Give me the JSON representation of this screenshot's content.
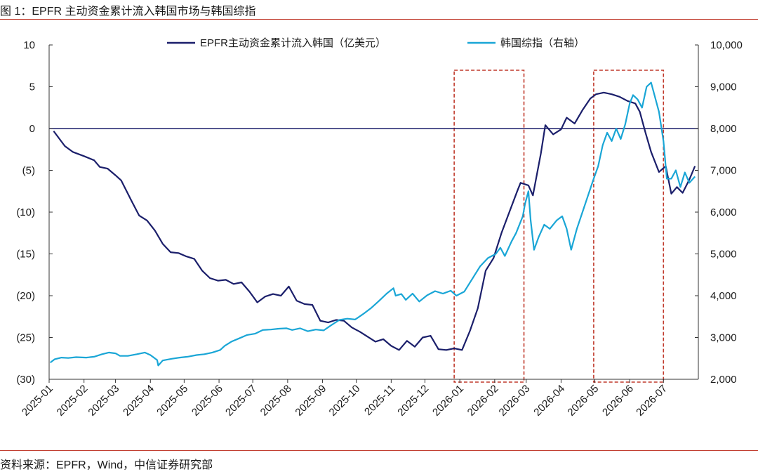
{
  "figure": {
    "title": "图 1：EPFR 主动资金累计流入韩国市场与韩国综指",
    "source": "资料来源：EPFR，Wind，中信证券研究部"
  },
  "colors": {
    "navy": "#1b1f6b",
    "cyan": "#1aa6d6",
    "highlight": "#c0392b",
    "rule": "#c0392b"
  },
  "chart_data": {
    "type": "line",
    "x_ticks": [
      "2025-01",
      "2025-02",
      "2025-03",
      "2025-04",
      "2025-05",
      "2025-06",
      "2025-07",
      "2025-08",
      "2025-09",
      "2025-10",
      "2025-11",
      "2025-12",
      "2026-01",
      "2026-02",
      "2026-03",
      "2026-04",
      "2026-05",
      "2026-06",
      "2026-07"
    ],
    "y_left": {
      "min": -30,
      "max": 10,
      "ticks": [
        "10",
        "5",
        "0",
        "(5)",
        "(10)",
        "(15)",
        "(20)",
        "(25)",
        "(30)"
      ]
    },
    "y_right": {
      "min": 2000,
      "max": 10000,
      "ticks": [
        "10,000",
        "9,000",
        "8,000",
        "7,000",
        "6,000",
        "5,000",
        "4,000",
        "3,000",
        "2,000"
      ]
    },
    "legend_position": "top",
    "highlight_ranges": [
      {
        "start": "2025-12-27",
        "end": "2026-02-27"
      },
      {
        "start": "2026-04-30",
        "end": "2026-07-01"
      }
    ],
    "series": [
      {
        "name": "EPFR主动资金累计流入韩国（亿美元）",
        "axis": "left",
        "points": [
          [
            "2025-01-05",
            -0.3
          ],
          [
            "2025-01-15",
            -2.1
          ],
          [
            "2025-01-22",
            -2.8
          ],
          [
            "2025-02-01",
            -3.3
          ],
          [
            "2025-02-10",
            -3.8
          ],
          [
            "2025-02-15",
            -4.6
          ],
          [
            "2025-02-22",
            -4.8
          ],
          [
            "2025-03-01",
            -5.6
          ],
          [
            "2025-03-06",
            -6.2
          ],
          [
            "2025-03-15",
            -8.6
          ],
          [
            "2025-03-22",
            -10.4
          ],
          [
            "2025-03-29",
            -11.0
          ],
          [
            "2025-04-05",
            -12.2
          ],
          [
            "2025-04-12",
            -13.8
          ],
          [
            "2025-04-19",
            -14.8
          ],
          [
            "2025-04-26",
            -14.9
          ],
          [
            "2025-05-03",
            -15.3
          ],
          [
            "2025-05-10",
            -15.6
          ],
          [
            "2025-05-17",
            -17.0
          ],
          [
            "2025-05-24",
            -17.9
          ],
          [
            "2025-05-31",
            -18.2
          ],
          [
            "2025-06-07",
            -18.1
          ],
          [
            "2025-06-14",
            -18.6
          ],
          [
            "2025-06-21",
            -18.4
          ],
          [
            "2025-06-28",
            -19.5
          ],
          [
            "2025-07-05",
            -20.8
          ],
          [
            "2025-07-12",
            -20.1
          ],
          [
            "2025-07-19",
            -19.8
          ],
          [
            "2025-07-26",
            -20.0
          ],
          [
            "2025-08-02",
            -18.9
          ],
          [
            "2025-08-09",
            -20.6
          ],
          [
            "2025-08-16",
            -21.0
          ],
          [
            "2025-08-23",
            -21.1
          ],
          [
            "2025-08-30",
            -23.0
          ],
          [
            "2025-09-06",
            -23.2
          ],
          [
            "2025-09-13",
            -22.9
          ],
          [
            "2025-09-20",
            -23.0
          ],
          [
            "2025-09-27",
            -23.8
          ],
          [
            "2025-10-04",
            -24.3
          ],
          [
            "2025-10-11",
            -24.9
          ],
          [
            "2025-10-18",
            -25.5
          ],
          [
            "2025-10-25",
            -25.2
          ],
          [
            "2025-11-01",
            -26.0
          ],
          [
            "2025-11-08",
            -26.5
          ],
          [
            "2025-11-15",
            -25.4
          ],
          [
            "2025-11-22",
            -26.1
          ],
          [
            "2025-11-29",
            -25.0
          ],
          [
            "2025-12-06",
            -24.8
          ],
          [
            "2025-12-13",
            -26.4
          ],
          [
            "2025-12-20",
            -26.5
          ],
          [
            "2025-12-27",
            -26.3
          ],
          [
            "2026-01-03",
            -26.5
          ],
          [
            "2026-01-10",
            -24.2
          ],
          [
            "2026-01-17",
            -21.5
          ],
          [
            "2026-01-24",
            -17.0
          ],
          [
            "2026-01-31",
            -15.5
          ],
          [
            "2026-02-07",
            -12.5
          ],
          [
            "2026-02-14",
            -10.0
          ],
          [
            "2026-02-21",
            -7.5
          ],
          [
            "2026-02-24",
            -6.5
          ],
          [
            "2026-03-03",
            -6.8
          ],
          [
            "2026-03-07",
            -8.0
          ],
          [
            "2026-03-14",
            -3.0
          ],
          [
            "2026-03-18",
            0.4
          ],
          [
            "2026-03-25",
            -0.7
          ],
          [
            "2026-04-01",
            -0.1
          ],
          [
            "2026-04-06",
            1.3
          ],
          [
            "2026-04-13",
            0.6
          ],
          [
            "2026-04-20",
            2.2
          ],
          [
            "2026-04-27",
            3.6
          ],
          [
            "2026-05-02",
            4.1
          ],
          [
            "2026-05-09",
            4.3
          ],
          [
            "2026-05-16",
            4.1
          ],
          [
            "2026-05-23",
            3.8
          ],
          [
            "2026-05-30",
            3.3
          ],
          [
            "2026-06-06",
            3.0
          ],
          [
            "2026-06-10",
            2.0
          ],
          [
            "2026-06-15",
            -0.5
          ],
          [
            "2026-06-20",
            -2.8
          ],
          [
            "2026-06-27",
            -5.2
          ],
          [
            "2026-07-03",
            -4.5
          ],
          [
            "2026-07-08",
            -7.8
          ],
          [
            "2026-07-13",
            -7.0
          ],
          [
            "2026-07-18",
            -7.7
          ],
          [
            "2026-07-24",
            -6.1
          ],
          [
            "2026-07-29",
            -4.5
          ]
        ]
      },
      {
        "name": "韩国综指（右轴）",
        "axis": "right",
        "points": [
          [
            "2025-01-02",
            2400
          ],
          [
            "2025-01-06",
            2480
          ],
          [
            "2025-01-12",
            2520
          ],
          [
            "2025-01-18",
            2510
          ],
          [
            "2025-01-25",
            2530
          ],
          [
            "2025-02-03",
            2520
          ],
          [
            "2025-02-10",
            2540
          ],
          [
            "2025-02-17",
            2600
          ],
          [
            "2025-02-23",
            2640
          ],
          [
            "2025-03-01",
            2620
          ],
          [
            "2025-03-05",
            2560
          ],
          [
            "2025-03-12",
            2560
          ],
          [
            "2025-03-20",
            2600
          ],
          [
            "2025-03-27",
            2640
          ],
          [
            "2025-04-01",
            2580
          ],
          [
            "2025-04-07",
            2460
          ],
          [
            "2025-04-08",
            2330
          ],
          [
            "2025-04-12",
            2450
          ],
          [
            "2025-04-20",
            2490
          ],
          [
            "2025-04-27",
            2520
          ],
          [
            "2025-05-04",
            2540
          ],
          [
            "2025-05-12",
            2580
          ],
          [
            "2025-05-19",
            2600
          ],
          [
            "2025-05-26",
            2640
          ],
          [
            "2025-06-02",
            2700
          ],
          [
            "2025-06-06",
            2800
          ],
          [
            "2025-06-12",
            2900
          ],
          [
            "2025-06-19",
            2980
          ],
          [
            "2025-06-26",
            3060
          ],
          [
            "2025-07-03",
            3090
          ],
          [
            "2025-07-10",
            3180
          ],
          [
            "2025-07-17",
            3190
          ],
          [
            "2025-07-24",
            3210
          ],
          [
            "2025-07-31",
            3220
          ],
          [
            "2025-08-05",
            3180
          ],
          [
            "2025-08-12",
            3220
          ],
          [
            "2025-08-19",
            3150
          ],
          [
            "2025-08-26",
            3190
          ],
          [
            "2025-09-02",
            3170
          ],
          [
            "2025-09-09",
            3300
          ],
          [
            "2025-09-16",
            3420
          ],
          [
            "2025-09-23",
            3450
          ],
          [
            "2025-09-30",
            3430
          ],
          [
            "2025-10-07",
            3560
          ],
          [
            "2025-10-14",
            3700
          ],
          [
            "2025-10-21",
            3870
          ],
          [
            "2025-10-28",
            4050
          ],
          [
            "2025-11-03",
            4180
          ],
          [
            "2025-11-05",
            4000
          ],
          [
            "2025-11-10",
            4040
          ],
          [
            "2025-11-14",
            3900
          ],
          [
            "2025-11-20",
            4050
          ],
          [
            "2025-11-26",
            3860
          ],
          [
            "2025-12-03",
            4010
          ],
          [
            "2025-12-10",
            4110
          ],
          [
            "2025-12-17",
            4050
          ],
          [
            "2025-12-24",
            4120
          ],
          [
            "2025-12-29",
            4000
          ],
          [
            "2026-01-05",
            4100
          ],
          [
            "2026-01-12",
            4400
          ],
          [
            "2026-01-19",
            4700
          ],
          [
            "2026-01-26",
            4900
          ],
          [
            "2026-02-02",
            5000
          ],
          [
            "2026-02-06",
            5150
          ],
          [
            "2026-02-10",
            4950
          ],
          [
            "2026-02-16",
            5300
          ],
          [
            "2026-02-20",
            5500
          ],
          [
            "2026-02-26",
            5900
          ],
          [
            "2026-02-28",
            6200
          ],
          [
            "2026-03-03",
            6500
          ],
          [
            "2026-03-05",
            5800
          ],
          [
            "2026-03-08",
            5100
          ],
          [
            "2026-03-12",
            5400
          ],
          [
            "2026-03-17",
            5700
          ],
          [
            "2026-03-22",
            5600
          ],
          [
            "2026-03-28",
            5800
          ],
          [
            "2026-04-02",
            5900
          ],
          [
            "2026-04-06",
            5600
          ],
          [
            "2026-04-10",
            5100
          ],
          [
            "2026-04-15",
            5600
          ],
          [
            "2026-04-20",
            6000
          ],
          [
            "2026-04-25",
            6400
          ],
          [
            "2026-04-30",
            6800
          ],
          [
            "2026-05-04",
            7100
          ],
          [
            "2026-05-08",
            7600
          ],
          [
            "2026-05-12",
            7900
          ],
          [
            "2026-05-16",
            7700
          ],
          [
            "2026-05-20",
            8000
          ],
          [
            "2026-05-24",
            7750
          ],
          [
            "2026-05-28",
            8100
          ],
          [
            "2026-06-01",
            8600
          ],
          [
            "2026-06-04",
            8800
          ],
          [
            "2026-06-08",
            8700
          ],
          [
            "2026-06-12",
            8500
          ],
          [
            "2026-06-16",
            9000
          ],
          [
            "2026-06-20",
            9100
          ],
          [
            "2026-06-24",
            8700
          ],
          [
            "2026-06-27",
            8400
          ],
          [
            "2026-07-01",
            7700
          ],
          [
            "2026-07-04",
            6800
          ],
          [
            "2026-07-08",
            6800
          ],
          [
            "2026-07-12",
            7000
          ],
          [
            "2026-07-16",
            6600
          ],
          [
            "2026-07-20",
            6950
          ],
          [
            "2026-07-24",
            6700
          ],
          [
            "2026-07-29",
            6850
          ]
        ]
      }
    ]
  }
}
